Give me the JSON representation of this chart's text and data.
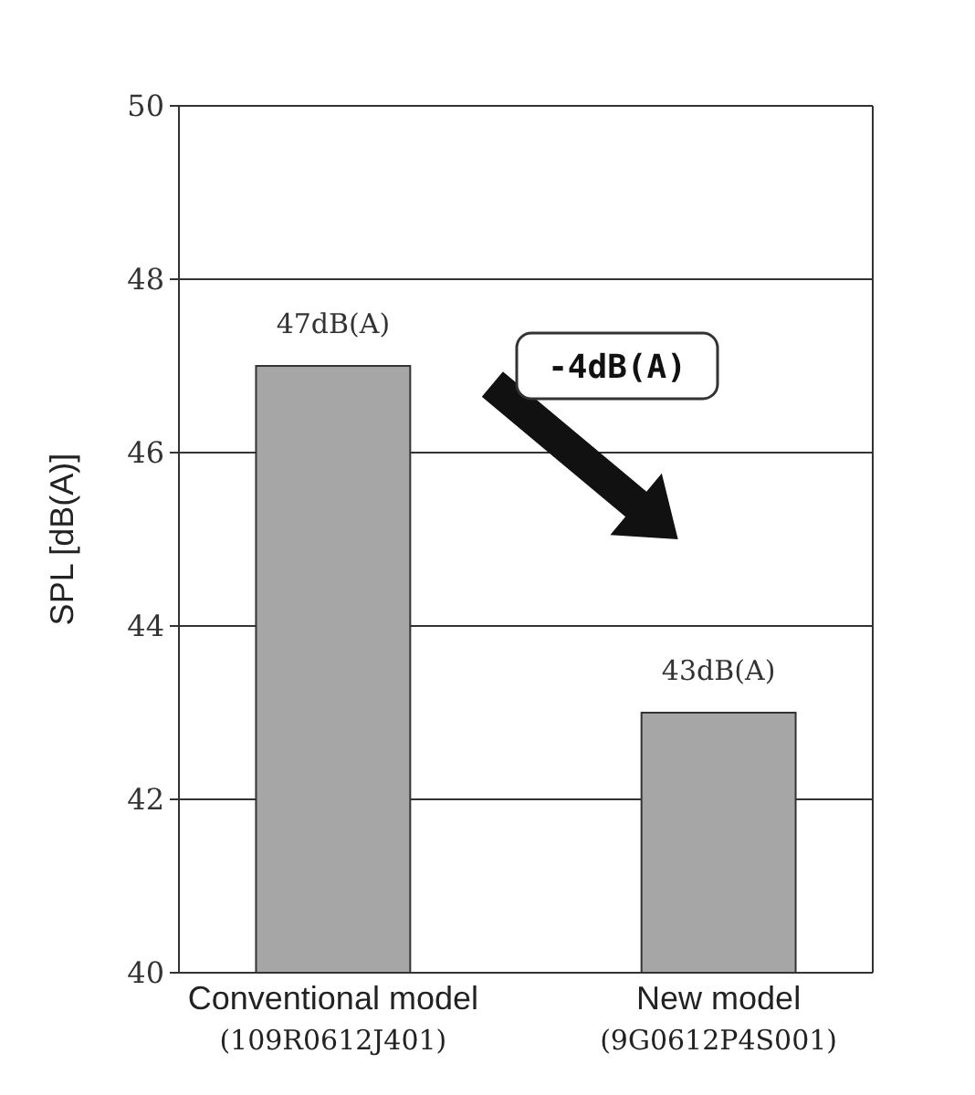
{
  "chart_data": {
    "type": "bar",
    "ylabel": "SPL [dB(A)]",
    "categories": [
      "Conventional model\n(109R0612J401)",
      "New model\n(9G0612P4S001)"
    ],
    "values": [
      47,
      43
    ],
    "color": "#a6a6a6",
    "value_labels": [
      "47dB(A)",
      "43dB(A)"
    ],
    "ylim": [
      40,
      50
    ],
    "yticks": [
      40,
      42,
      44,
      46,
      48,
      50
    ],
    "grid": "y",
    "annotations": [
      "-4dB(A)"
    ]
  }
}
